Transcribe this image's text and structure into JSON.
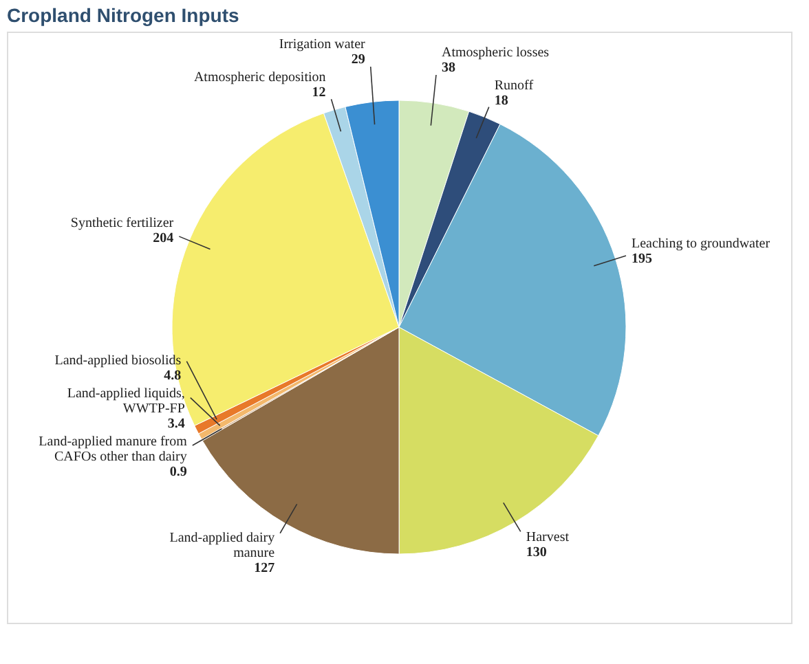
{
  "chart_data": {
    "type": "pie",
    "title": "Cropland Nitrogen Inputs",
    "categories": [
      "Atmospheric losses",
      "Runoff",
      "Leaching to groundwater",
      "Harvest",
      "Land-applied dairy manure",
      "Land-applied manure from CAFOs other than dairy",
      "Land-applied liquids, WWTP-FP",
      "Land-applied biosolids",
      "Synthetic fertilizer",
      "Atmospheric deposition",
      "Irrigation water"
    ],
    "values": [
      38,
      18,
      195,
      130,
      127,
      0.9,
      3.4,
      4.8,
      204,
      12,
      29
    ],
    "colors": [
      "#d2e9bc",
      "#2e4d7a",
      "#6bb0cf",
      "#d6dd62",
      "#8c6b45",
      "#c9a27a",
      "#f3b86c",
      "#e8792a",
      "#f6ed6e",
      "#aad5e8",
      "#3b8fd2"
    ],
    "data_labels": true,
    "legend": false
  }
}
